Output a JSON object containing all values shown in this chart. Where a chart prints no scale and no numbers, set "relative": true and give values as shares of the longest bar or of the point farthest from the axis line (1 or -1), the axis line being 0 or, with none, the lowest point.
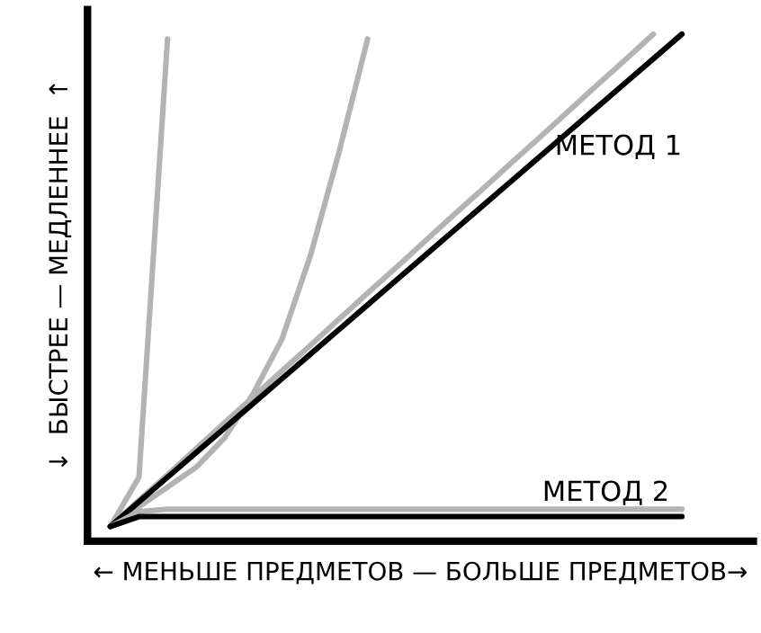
{
  "chart_data": {
    "type": "line",
    "relative": true,
    "xlabel": "← МЕНЬШЕ ПРЕДМЕТОВ — БОЛЬШЕ ПРЕДМЕТОВ→",
    "ylabel": "↓  БЫСТРЕЕ — МЕДЛЕННЕЕ  ↑",
    "categories": [
      null,
      null,
      null,
      null,
      null,
      null,
      null,
      null,
      null,
      null,
      null,
      null,
      null,
      null,
      null,
      null,
      null,
      null,
      null,
      null,
      null
    ],
    "series": [
      {
        "color": "#b3b3b3",
        "values": [
          0,
          0.1,
          0.99,
          null,
          null,
          null,
          null,
          null,
          null,
          null,
          null,
          null,
          null,
          null,
          null,
          null,
          null,
          null,
          null,
          null,
          null
        ]
      },
      {
        "color": "#b3b3b3",
        "values": [
          0,
          0.04,
          0.08,
          0.12,
          0.18,
          0.27,
          0.38,
          0.55,
          0.76,
          0.99,
          null,
          null,
          null,
          null,
          null,
          null,
          null,
          null,
          null,
          null,
          null
        ]
      },
      {
        "color": "#b3b3b3",
        "values": [
          0,
          0.053,
          0.105,
          0.158,
          0.211,
          0.263,
          0.316,
          0.368,
          0.421,
          0.474,
          0.526,
          0.579,
          0.632,
          0.684,
          0.737,
          0.789,
          0.842,
          0.895,
          0.947,
          1.0,
          null
        ]
      },
      {
        "name": "МЕТОД 1",
        "color": "#000000",
        "values": [
          0,
          0.05,
          0.1,
          0.15,
          0.2,
          0.25,
          0.3,
          0.35,
          0.4,
          0.45,
          0.5,
          0.55,
          0.6,
          0.65,
          0.7,
          0.75,
          0.8,
          0.85,
          0.9,
          0.95,
          1.0
        ]
      },
      {
        "color": "#b3b3b3",
        "values": [
          0,
          0.03,
          0.035,
          0.035,
          0.035,
          0.035,
          0.035,
          0.035,
          0.035,
          0.035,
          0.035,
          0.035,
          0.035,
          0.035,
          0.035,
          0.035,
          0.035,
          0.035,
          0.035,
          0.035,
          0.035
        ]
      },
      {
        "name": "МЕТОД 2",
        "color": "#000000",
        "values": [
          0,
          0.02,
          0.02,
          0.02,
          0.02,
          0.02,
          0.02,
          0.02,
          0.02,
          0.02,
          0.02,
          0.02,
          0.02,
          0.02,
          0.02,
          0.02,
          0.02,
          0.02,
          0.02,
          0.02,
          0.02
        ]
      }
    ]
  }
}
